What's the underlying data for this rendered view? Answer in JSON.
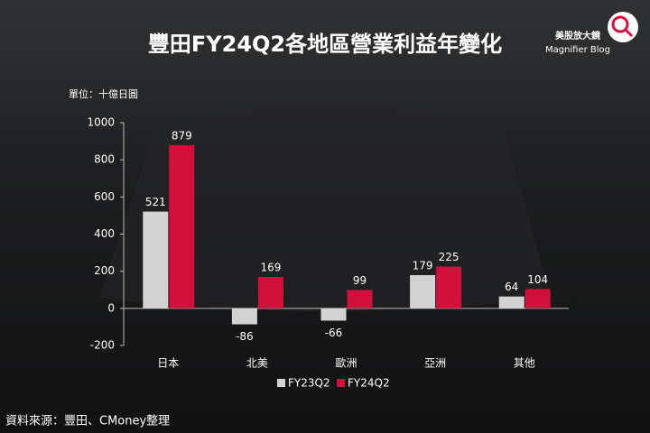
{
  "chart_data": {
    "type": "bar",
    "title": "豐田FY24Q2各地區營業利益年變化",
    "unit_label": "單位：十億日圓",
    "source": "資料來源：豐田、CMoney整理",
    "brand": "美股放大鏡",
    "brand_tagline": "Magnifier Blog",
    "categories": [
      "日本",
      "北美",
      "歐洲",
      "亞洲",
      "其他"
    ],
    "series": [
      {
        "name": "FY23Q2",
        "color": "#d3d3d3",
        "values": [
          521,
          -86,
          -66,
          179,
          64
        ]
      },
      {
        "name": "FY24Q2",
        "color": "#d3103c",
        "values": [
          879,
          169,
          99,
          225,
          104
        ]
      }
    ],
    "ylim": [
      -200,
      1000
    ],
    "yticks": [
      -200,
      0,
      200,
      400,
      600,
      800,
      1000
    ],
    "grid": false
  }
}
